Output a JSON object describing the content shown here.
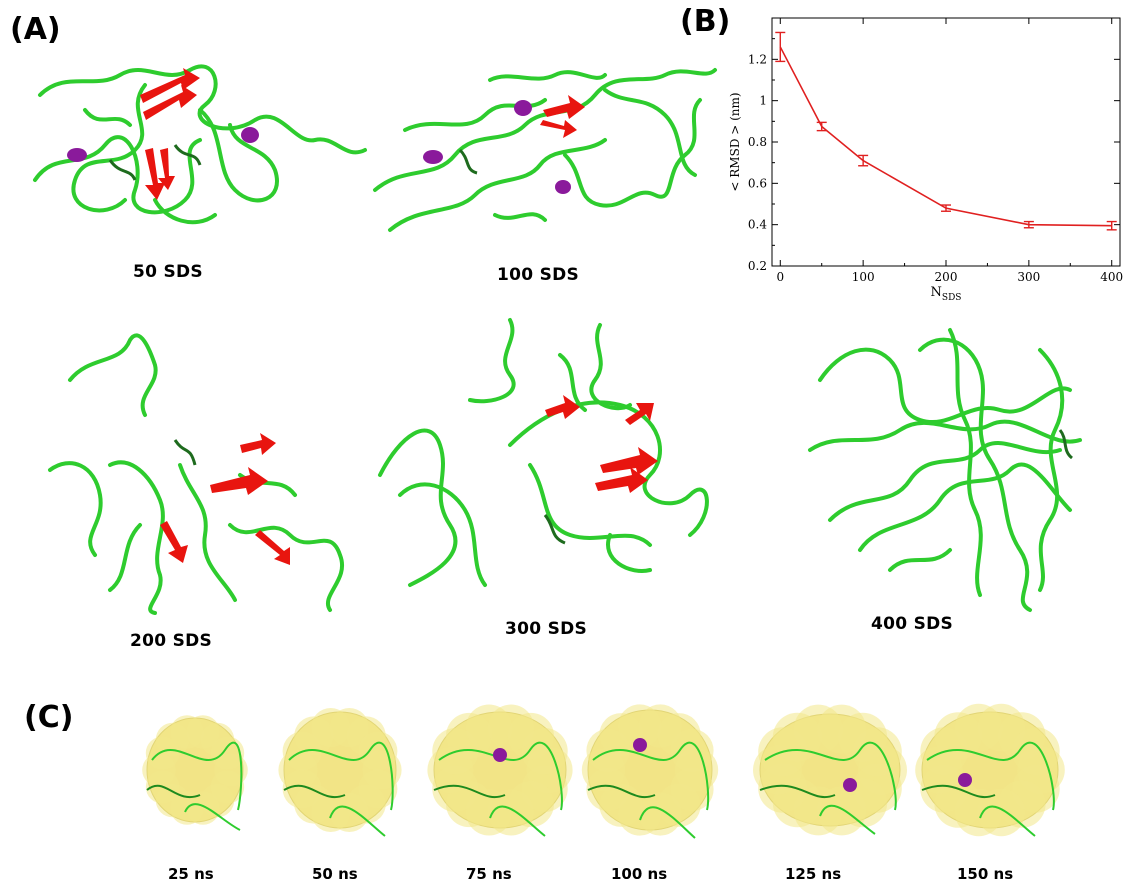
{
  "panels": {
    "a": "(A)",
    "b": "(B)",
    "c": "(C)"
  },
  "structures": [
    "50 SDS",
    "100 SDS",
    "200 SDS",
    "300 SDS",
    "400 SDS"
  ],
  "snapshots": [
    "25 ns",
    "50 ns",
    "75 ns",
    "100 ns",
    "125 ns",
    "150 ns"
  ],
  "colors": {
    "coil": "#2ecc2e",
    "coil_dark": "#1e6b1e",
    "sheet": "#e8150f",
    "helix": "#8a1a9b",
    "surface": "#f1e27a",
    "line": "#e02020"
  },
  "chart_data": {
    "type": "line",
    "x": [
      0,
      50,
      100,
      200,
      300,
      400
    ],
    "y": [
      1.26,
      0.875,
      0.71,
      0.48,
      0.4,
      0.395
    ],
    "err": [
      0.07,
      0.02,
      0.025,
      0.015,
      0.015,
      0.02
    ],
    "xticks": [
      "0",
      "100",
      "200",
      "300",
      "400"
    ],
    "yticks": [
      "0.2",
      "0.4",
      "0.6",
      "0.8",
      "1",
      "1.2"
    ],
    "xlim": [
      -10,
      410
    ],
    "ylim": [
      0.2,
      1.4
    ],
    "xlabel_main": "N",
    "xlabel_sub": "SDS",
    "ylabel": "< RMSD > (nm)"
  }
}
